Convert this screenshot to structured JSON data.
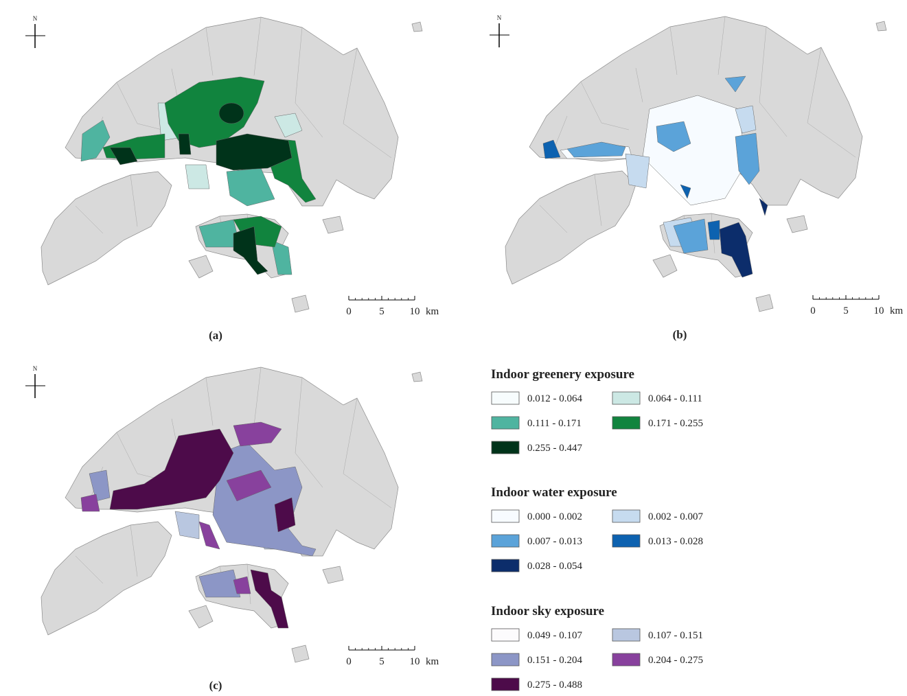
{
  "panels": [
    {
      "label": "(a)",
      "north": "N",
      "scale": {
        "ticks": [
          0,
          5,
          10
        ],
        "unit": "km"
      }
    },
    {
      "label": "(b)",
      "north": "N",
      "scale": {
        "ticks": [
          0,
          5,
          10
        ],
        "unit": "km"
      }
    },
    {
      "label": "(c)",
      "north": "N",
      "scale": {
        "ticks": [
          0,
          5,
          10
        ],
        "unit": "km"
      }
    }
  ],
  "legends": [
    {
      "title": "Indoor greenery exposure",
      "classes": [
        {
          "range": "0.012 - 0.064",
          "color": "#f7fcfd"
        },
        {
          "range": "0.064 - 0.111",
          "color": "#cce8e4"
        },
        {
          "range": "0.111 - 0.171",
          "color": "#4fb4a0"
        },
        {
          "range": "0.171 - 0.255",
          "color": "#11843e"
        },
        {
          "range": "0.255 - 0.447",
          "color": "#00331a"
        }
      ]
    },
    {
      "title": "Indoor water exposure",
      "classes": [
        {
          "range": "0.000 - 0.002",
          "color": "#f7fbff"
        },
        {
          "range": "0.002 - 0.007",
          "color": "#c6dbef"
        },
        {
          "range": "0.007 - 0.013",
          "color": "#5ba3d9"
        },
        {
          "range": "0.013 - 0.028",
          "color": "#0d62b0"
        },
        {
          "range": "0.028 - 0.054",
          "color": "#0c2d6b"
        }
      ]
    },
    {
      "title": "Indoor sky exposure",
      "classes": [
        {
          "range": "0.049 - 0.107",
          "color": "#fcfbfd"
        },
        {
          "range": "0.107 - 0.151",
          "color": "#b9c7e0"
        },
        {
          "range": "0.151 - 0.204",
          "color": "#8c96c6"
        },
        {
          "range": "0.204 - 0.275",
          "color": "#88419d"
        },
        {
          "range": "0.275 - 0.488",
          "color": "#4d0b4a"
        }
      ]
    }
  ]
}
